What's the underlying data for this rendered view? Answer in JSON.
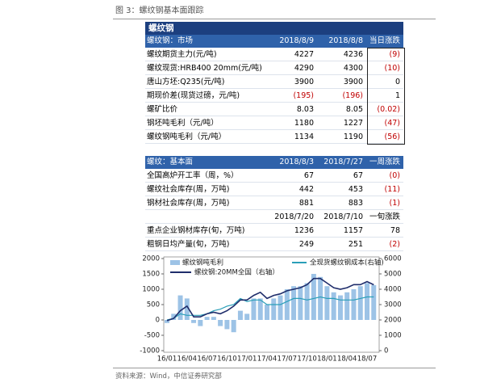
{
  "figure_title": "图 3：螺纹钢基本面跟踪",
  "table1": {
    "title": "螺纹钢",
    "header": [
      "螺纹钢：市场",
      "2018/8/9",
      "2018/8/8",
      "当日涨跌"
    ],
    "rows": [
      [
        "螺纹期货主力(元/吨)",
        "4227",
        "4236",
        "(9)"
      ],
      [
        "螺纹现货:HRB400 20mm(元/吨)",
        "4290",
        "4300",
        "(10)"
      ],
      [
        "唐山方坯:Q235(元/吨)",
        "3900",
        "3900",
        "0"
      ],
      [
        "期现价差(现货过磅，元/吨)",
        "(195)",
        "(196)",
        "1"
      ],
      [
        "螺矿比价",
        "8.03",
        "8.05",
        "(0.02)"
      ],
      [
        "钢坯吨毛利（元/吨）",
        "1180",
        "1227",
        "(47)"
      ],
      [
        "螺纹钢吨毛利（元/吨）",
        "1134",
        "1190",
        "(56)"
      ]
    ]
  },
  "table2": {
    "header": [
      "螺纹：基本面",
      "2018/8/3",
      "2018/7/27",
      "一周涨跌"
    ],
    "rows": [
      [
        "全国高炉开工率（周，%）",
        "67",
        "67",
        "(0)"
      ],
      [
        "螺纹社会库存(周，万吨)",
        "442",
        "453",
        "(11)"
      ],
      [
        "钢材社会库存(周，万吨)",
        "881",
        "883",
        "(1)"
      ]
    ],
    "subheader": [
      "2018/7/20",
      "2018/7/10",
      "一旬涨跌"
    ],
    "rows2": [
      [
        "重点企业钢材库存(旬，万吨)",
        "1236",
        "1157",
        "78"
      ],
      [
        "粗钢日均产量(旬，万吨)",
        "249",
        "251",
        "(2)"
      ]
    ]
  },
  "chart_data": {
    "type": "bar",
    "categories": [
      "16/01",
      null,
      null,
      "16/04",
      null,
      null,
      "16/07",
      null,
      null,
      "16/10",
      null,
      null,
      "17/01",
      null,
      null,
      "17/04",
      null,
      null,
      "17/07",
      null,
      null,
      "17/10",
      null,
      null,
      "18/01",
      null,
      null,
      "18/04",
      null,
      null,
      "18/07",
      null
    ],
    "series": [
      {
        "name": "螺纹钢吨毛利",
        "type": "bar",
        "color": "#9dc3e6",
        "values": [
          -100,
          200,
          800,
          700,
          -100,
          -200,
          100,
          100,
          -200,
          -300,
          -400,
          300,
          200,
          700,
          700,
          500,
          700,
          800,
          1000,
          1100,
          1100,
          1200,
          1500,
          1400,
          1100,
          900,
          800,
          900,
          1000,
          1100,
          1200,
          1134
        ]
      },
      {
        "name": "全现货螺纹钢成本(右轴)",
        "type": "line",
        "axis": "y2",
        "color": "#2a9fb8",
        "values": [
          2000,
          2100,
          2400,
          2300,
          2300,
          2300,
          2400,
          2600,
          2700,
          2900,
          3000,
          3400,
          3200,
          3300,
          3300,
          3000,
          3000,
          3000,
          3200,
          3400,
          3400,
          3300,
          3400,
          3500,
          3400,
          3400,
          3300,
          3300,
          3300,
          3400,
          3500,
          3500
        ]
      },
      {
        "name": "螺纹钢:20MM全国（右轴）",
        "type": "line",
        "axis": "y2",
        "color": "#1f2d6b",
        "values": [
          1950,
          2100,
          2600,
          2900,
          2200,
          2200,
          2400,
          2500,
          2400,
          2600,
          2900,
          3300,
          3300,
          3600,
          3800,
          3400,
          3600,
          3700,
          3900,
          4000,
          4100,
          4300,
          4700,
          4700,
          4400,
          4100,
          4000,
          4100,
          4300,
          4300,
          4500,
          4290
        ]
      }
    ],
    "ylim": [
      -1000,
      2000
    ],
    "yticks": [
      -1000,
      -500,
      0,
      500,
      1000,
      1500,
      2000
    ],
    "y2lim": [
      0,
      6000
    ],
    "y2ticks": [
      0,
      1000,
      2000,
      3000,
      4000,
      5000,
      6000
    ]
  },
  "source": "资料来源：Wind，中信证券研究部"
}
